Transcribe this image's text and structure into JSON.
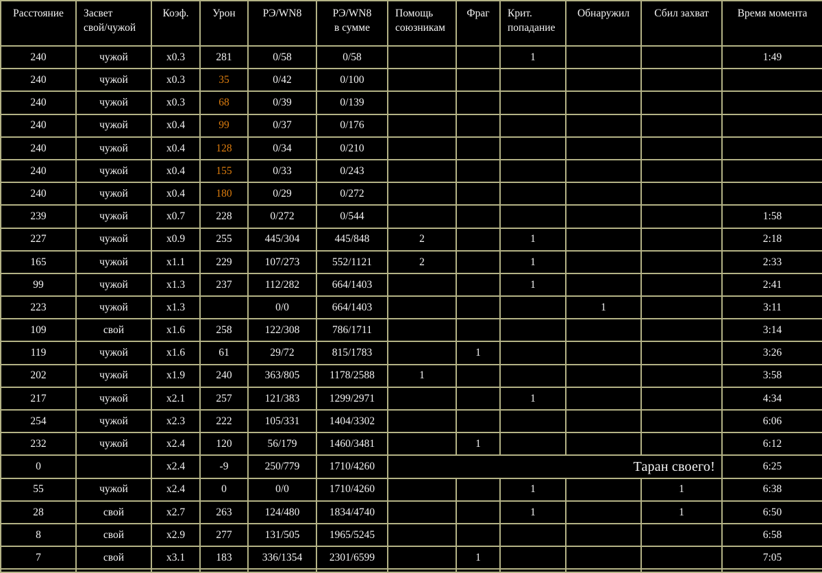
{
  "colors": {
    "background": "#000000",
    "border": "#b4b386",
    "text": "#f4f4f4",
    "damage_highlight": "#dd7d0e"
  },
  "chart_data": {
    "type": "table",
    "columns": [
      {
        "key": "distance",
        "label": "Расстояние",
        "header_align": "center"
      },
      {
        "key": "spot",
        "label": "Засвет\nсвой/чужой",
        "header_align": "left"
      },
      {
        "key": "coef",
        "label": "Коэф.",
        "header_align": "center"
      },
      {
        "key": "damage",
        "label": "Урон",
        "header_align": "center"
      },
      {
        "key": "re_wn8",
        "label": "РЭ/WN8",
        "header_align": "center"
      },
      {
        "key": "re_wn8_sum",
        "label": "РЭ/WN8\nв сумме",
        "header_align": "center"
      },
      {
        "key": "ally_help",
        "label": "Помощь\nсоюзникам",
        "header_align": "left"
      },
      {
        "key": "frag",
        "label": "Фраг",
        "header_align": "center"
      },
      {
        "key": "crit_hit",
        "label": "Крит.\nпопадание",
        "header_align": "left"
      },
      {
        "key": "detected",
        "label": "Обнаружил",
        "header_align": "center"
      },
      {
        "key": "capture_reset",
        "label": "Сбил захват",
        "header_align": "center"
      },
      {
        "key": "moment_time",
        "label": "Время момента",
        "header_align": "center"
      }
    ],
    "rows": [
      {
        "cells": [
          "240",
          "чужой",
          "x0.3",
          "281",
          "0/58",
          "0/58",
          "",
          "",
          "1",
          "",
          "",
          "1:49"
        ]
      },
      {
        "cells": [
          "240",
          "чужой",
          "x0.3",
          "35",
          "0/42",
          "0/100",
          "",
          "",
          "",
          "",
          "",
          ""
        ],
        "damage_highlight": true
      },
      {
        "cells": [
          "240",
          "чужой",
          "x0.3",
          "68",
          "0/39",
          "0/139",
          "",
          "",
          "",
          "",
          "",
          ""
        ],
        "damage_highlight": true
      },
      {
        "cells": [
          "240",
          "чужой",
          "x0.4",
          "99",
          "0/37",
          "0/176",
          "",
          "",
          "",
          "",
          "",
          ""
        ],
        "damage_highlight": true
      },
      {
        "cells": [
          "240",
          "чужой",
          "x0.4",
          "128",
          "0/34",
          "0/210",
          "",
          "",
          "",
          "",
          "",
          ""
        ],
        "damage_highlight": true
      },
      {
        "cells": [
          "240",
          "чужой",
          "x0.4",
          "155",
          "0/33",
          "0/243",
          "",
          "",
          "",
          "",
          "",
          ""
        ],
        "damage_highlight": true
      },
      {
        "cells": [
          "240",
          "чужой",
          "x0.4",
          "180",
          "0/29",
          "0/272",
          "",
          "",
          "",
          "",
          "",
          ""
        ],
        "damage_highlight": true
      },
      {
        "cells": [
          "239",
          "чужой",
          "x0.7",
          "228",
          "0/272",
          "0/544",
          "",
          "",
          "",
          "",
          "",
          "1:58"
        ]
      },
      {
        "cells": [
          "227",
          "чужой",
          "x0.9",
          "255",
          "445/304",
          "445/848",
          "2",
          "",
          "1",
          "",
          "",
          "2:18"
        ]
      },
      {
        "cells": [
          "165",
          "чужой",
          "x1.1",
          "229",
          "107/273",
          "552/1121",
          "2",
          "",
          "1",
          "",
          "",
          "2:33"
        ]
      },
      {
        "cells": [
          "99",
          "чужой",
          "x1.3",
          "237",
          "112/282",
          "664/1403",
          "",
          "",
          "1",
          "",
          "",
          "2:41"
        ]
      },
      {
        "cells": [
          "223",
          "чужой",
          "x1.3",
          "",
          "0/0",
          "664/1403",
          "",
          "",
          "",
          "1",
          "",
          "3:11"
        ]
      },
      {
        "cells": [
          "109",
          "свой",
          "x1.6",
          "258",
          "122/308",
          "786/1711",
          "",
          "",
          "",
          "",
          "",
          "3:14"
        ]
      },
      {
        "cells": [
          "119",
          "чужой",
          "x1.6",
          "61",
          "29/72",
          "815/1783",
          "",
          "1",
          "",
          "",
          "",
          "3:26"
        ]
      },
      {
        "cells": [
          "202",
          "чужой",
          "x1.9",
          "240",
          "363/805",
          "1178/2588",
          "1",
          "",
          "",
          "",
          "",
          "3:58"
        ]
      },
      {
        "cells": [
          "217",
          "чужой",
          "x2.1",
          "257",
          "121/383",
          "1299/2971",
          "",
          "",
          "1",
          "",
          "",
          "4:34"
        ]
      },
      {
        "cells": [
          "254",
          "чужой",
          "x2.3",
          "222",
          "105/331",
          "1404/3302",
          "",
          "",
          "",
          "",
          "",
          "6:06"
        ]
      },
      {
        "cells": [
          "232",
          "чужой",
          "x2.4",
          "120",
          "56/179",
          "1460/3481",
          "",
          "1",
          "",
          "",
          "",
          "6:12"
        ]
      },
      {
        "cells": [
          "0",
          "",
          "x2.4",
          "-9",
          "250/779",
          "1710/4260",
          "",
          "",
          "",
          "",
          "",
          "6:25"
        ],
        "note": "Таран своего!"
      },
      {
        "cells": [
          "55",
          "чужой",
          "x2.4",
          "0",
          "0/0",
          "1710/4260",
          "",
          "",
          "1",
          "",
          "1",
          "6:38"
        ]
      },
      {
        "cells": [
          "28",
          "свой",
          "x2.7",
          "263",
          "124/480",
          "1834/4740",
          "",
          "",
          "1",
          "",
          "1",
          "6:50"
        ]
      },
      {
        "cells": [
          "8",
          "свой",
          "x2.9",
          "277",
          "131/505",
          "1965/5245",
          "",
          "",
          "",
          "",
          "",
          "6:58"
        ]
      },
      {
        "cells": [
          "7",
          "свой",
          "x3.1",
          "183",
          "336/1354",
          "2301/6599",
          "",
          "1",
          "",
          "",
          "",
          "7:05"
        ]
      },
      {
        "cells": [
          "",
          "",
          "",
          "",
          "",
          "",
          "",
          "",
          "",
          "",
          "",
          ""
        ],
        "partial": true
      }
    ]
  }
}
